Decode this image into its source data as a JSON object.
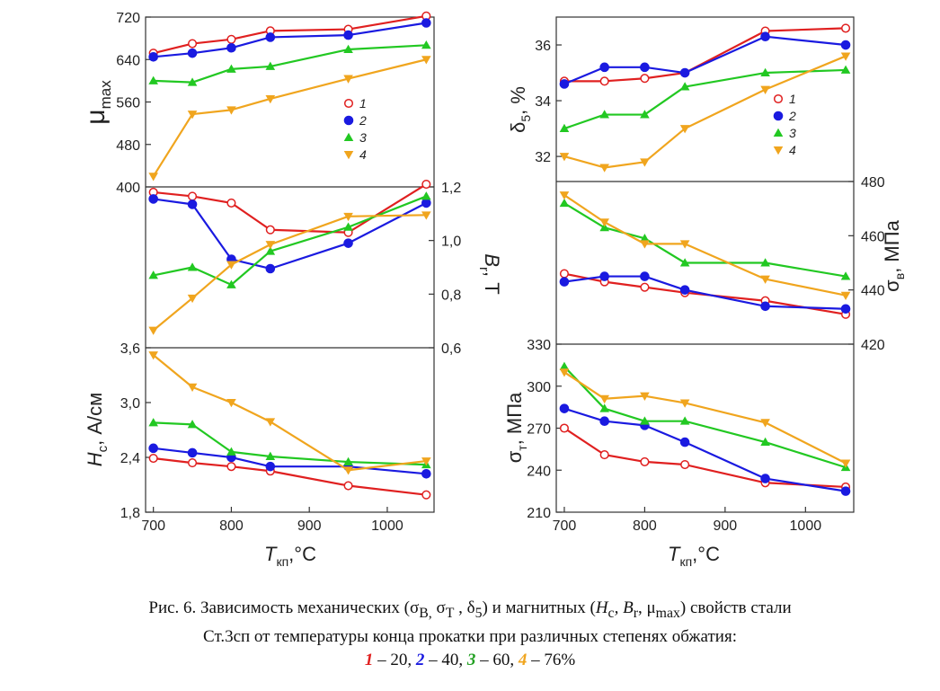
{
  "colors": {
    "s1": "#e02020",
    "s2": "#1a1ae0",
    "s3": "#22c822",
    "s4": "#f0a51e",
    "axis": "#333333"
  },
  "legend": {
    "labels": [
      "1",
      "2",
      "3",
      "4"
    ]
  },
  "axis_labels": {
    "mu_main": "μ",
    "mu_sub": "max",
    "br_main": "B",
    "br_sub": "r",
    "br_unit": ", Т",
    "hc_main": "H",
    "hc_sub": "c",
    "hc_unit": ", А/см",
    "t_main": "T",
    "t_sub": "кп",
    "t_unit": ",°С",
    "delta_main": "δ",
    "delta_sub": "5",
    "delta_unit": ", %",
    "sv_main": "σ",
    "sv_sub": "в",
    "sv_unit": ", МПа",
    "st_main": "σ",
    "st_sub": "т",
    "st_unit": ", МПа"
  },
  "caption": {
    "line1_a": "Рис. 6. Зависимость механических (σ",
    "line1_b": "В,",
    "line1_c": " σ",
    "line1_d": "Т",
    "line1_e": " , δ",
    "line1_f": "5",
    "line1_g": ") и магнитных (",
    "line1_h": "H",
    "line1_i": "с",
    "line1_j": ", B",
    "line1_k": "r",
    "line1_l": ", μ",
    "line1_m": "max",
    "line1_n": ") свойств стали",
    "line2": "Ст.3сп от температуры конца прокатки при различных степенях обжатия:",
    "n1": "1",
    "v1": " – 20, ",
    "n2": "2",
    "v2": " – 40, ",
    "n3": "3",
    "v3": " – 60, ",
    "n4": "4",
    "v4": " – 76%"
  },
  "chart_data": [
    {
      "id": "mu",
      "type": "line",
      "x": [
        700,
        750,
        800,
        850,
        950,
        1050
      ],
      "xlim": [
        690,
        1060
      ],
      "ylim": [
        400,
        720
      ],
      "yticks": [
        400,
        480,
        560,
        640,
        720
      ],
      "ytick_labels": [
        "400",
        "480",
        "560",
        "640",
        "720"
      ],
      "xlabel": "",
      "ylabel": "μmax",
      "series": [
        {
          "name": "1",
          "values": [
            652,
            670,
            678,
            694,
            697,
            722
          ]
        },
        {
          "name": "2",
          "values": [
            645,
            652,
            662,
            682,
            686,
            709
          ]
        },
        {
          "name": "3",
          "values": [
            600,
            597,
            622,
            627,
            659,
            667
          ]
        },
        {
          "name": "4",
          "values": [
            420,
            537,
            545,
            566,
            604,
            640
          ]
        }
      ],
      "legend": "right",
      "grid": false
    },
    {
      "id": "br",
      "type": "line",
      "x": [
        700,
        750,
        800,
        850,
        950,
        1050
      ],
      "xlim": [
        690,
        1060
      ],
      "ylim": [
        0.6,
        1.2
      ],
      "yticks": [
        0.6,
        0.8,
        1.0,
        1.2
      ],
      "ytick_labels": [
        "0,6",
        "0,8",
        "1,0",
        "1,2"
      ],
      "xlabel": "",
      "ylabel": "Br, Т",
      "series": [
        {
          "name": "1",
          "values": [
            1.18,
            1.165,
            1.14,
            1.04,
            1.03,
            1.21
          ]
        },
        {
          "name": "2",
          "values": [
            1.155,
            1.135,
            0.93,
            0.895,
            0.99,
            1.14
          ]
        },
        {
          "name": "3",
          "values": [
            0.87,
            0.9,
            0.835,
            0.96,
            1.05,
            1.165
          ]
        },
        {
          "name": "4",
          "values": [
            0.665,
            0.785,
            0.91,
            0.985,
            1.09,
            1.095
          ]
        }
      ],
      "grid": false
    },
    {
      "id": "hc",
      "type": "line",
      "x": [
        700,
        750,
        800,
        850,
        950,
        1050
      ],
      "xlim": [
        690,
        1060
      ],
      "ylim": [
        1.8,
        3.6
      ],
      "yticks": [
        1.8,
        2.4,
        3.0,
        3.6
      ],
      "ytick_labels": [
        "1,8",
        "2,4",
        "3,0",
        "3,6"
      ],
      "xticks": [
        700,
        800,
        900,
        1000
      ],
      "xtick_labels": [
        "700",
        "800",
        "900",
        "1000"
      ],
      "xlabel": "Tкп,°С",
      "ylabel": "Hс, А/см",
      "series": [
        {
          "name": "1",
          "values": [
            2.39,
            2.34,
            2.3,
            2.25,
            2.09,
            1.99
          ]
        },
        {
          "name": "2",
          "values": [
            2.5,
            2.45,
            2.4,
            2.3,
            2.3,
            2.22
          ]
        },
        {
          "name": "3",
          "values": [
            2.78,
            2.76,
            2.46,
            2.41,
            2.35,
            2.32
          ]
        },
        {
          "name": "4",
          "values": [
            3.52,
            3.17,
            3.0,
            2.79,
            2.26,
            2.36
          ]
        }
      ],
      "grid": false
    },
    {
      "id": "delta",
      "type": "line",
      "x": [
        700,
        750,
        800,
        850,
        950,
        1050
      ],
      "xlim": [
        690,
        1060
      ],
      "ylim": [
        31.1,
        37.0
      ],
      "yticks": [
        32,
        34,
        36
      ],
      "ytick_labels": [
        "32",
        "34",
        "36"
      ],
      "xlabel": "",
      "ylabel": "δ5, %",
      "series": [
        {
          "name": "1",
          "values": [
            34.7,
            34.7,
            34.8,
            35.0,
            36.5,
            36.6
          ]
        },
        {
          "name": "2",
          "values": [
            34.6,
            35.2,
            35.2,
            35.0,
            36.3,
            36.0
          ]
        },
        {
          "name": "3",
          "values": [
            33.0,
            33.5,
            33.5,
            34.5,
            35.0,
            35.1
          ]
        },
        {
          "name": "4",
          "values": [
            32.0,
            31.6,
            31.8,
            33.0,
            34.4,
            35.6
          ]
        }
      ],
      "legend": "right",
      "grid": false
    },
    {
      "id": "sv",
      "type": "line",
      "x": [
        700,
        750,
        800,
        850,
        950,
        1050
      ],
      "xlim": [
        690,
        1060
      ],
      "ylim": [
        420,
        480
      ],
      "yticks": [
        420,
        440,
        460,
        480
      ],
      "ytick_labels": [
        "420",
        "440",
        "460",
        "480"
      ],
      "xlabel": "",
      "ylabel": "σв, МПа",
      "series": [
        {
          "name": "1",
          "values": [
            446,
            443,
            441,
            439,
            436,
            431
          ]
        },
        {
          "name": "2",
          "values": [
            443,
            445,
            445,
            440,
            434,
            433
          ]
        },
        {
          "name": "3",
          "values": [
            472,
            463,
            459,
            450,
            450,
            445
          ]
        },
        {
          "name": "4",
          "values": [
            475,
            465,
            457,
            457,
            444,
            438
          ]
        }
      ],
      "grid": false
    },
    {
      "id": "st",
      "type": "line",
      "x": [
        700,
        750,
        800,
        850,
        950,
        1050
      ],
      "xlim": [
        690,
        1060
      ],
      "ylim": [
        210,
        330
      ],
      "yticks": [
        210,
        240,
        270,
        300,
        330
      ],
      "ytick_labels": [
        "210",
        "240",
        "270",
        "300",
        "330"
      ],
      "xticks": [
        700,
        800,
        900,
        1000
      ],
      "xtick_labels": [
        "700",
        "800",
        "900",
        "1000"
      ],
      "xlabel": "Tкп,°С",
      "ylabel": "σт, МПа",
      "series": [
        {
          "name": "1",
          "values": [
            270,
            251,
            246,
            244,
            231,
            228
          ]
        },
        {
          "name": "2",
          "values": [
            284,
            275,
            272,
            260,
            234,
            225
          ]
        },
        {
          "name": "3",
          "values": [
            314,
            284,
            275,
            275,
            260,
            242
          ]
        },
        {
          "name": "4",
          "values": [
            310,
            291,
            293,
            288,
            274,
            245
          ]
        }
      ],
      "grid": false
    }
  ]
}
